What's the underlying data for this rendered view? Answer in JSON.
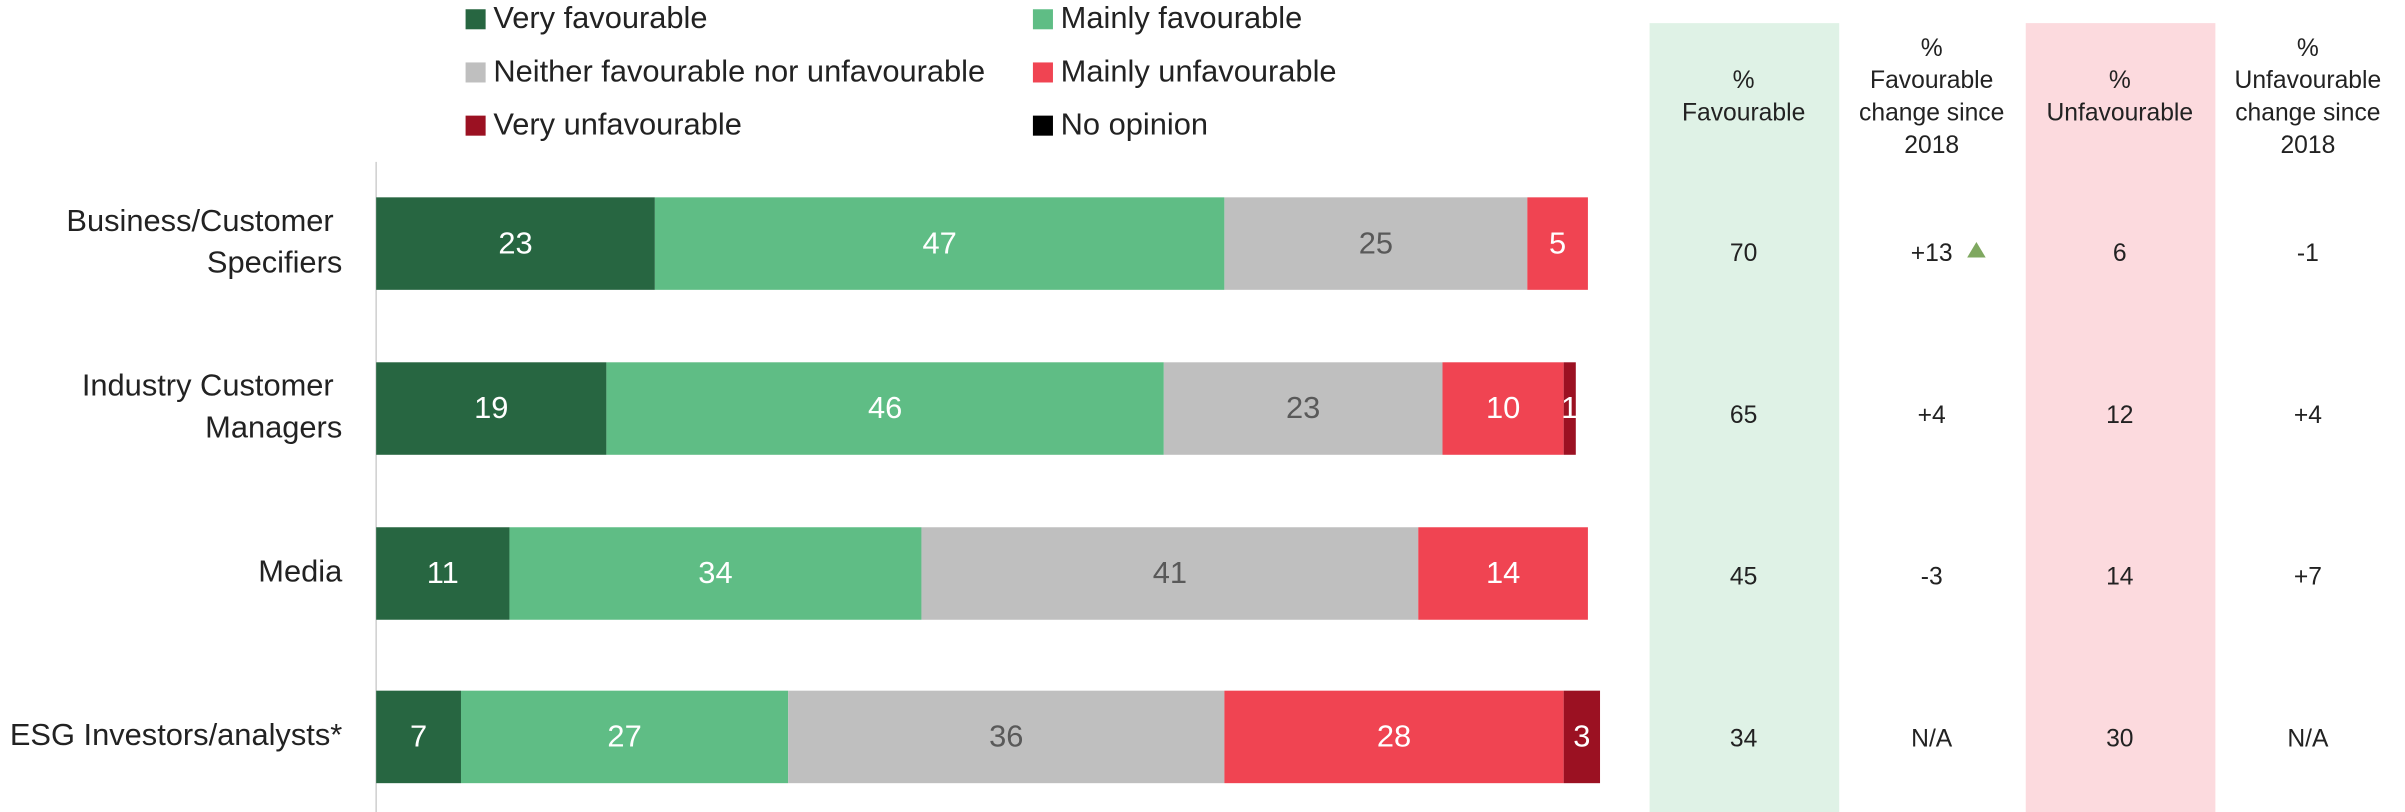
{
  "chart_data": {
    "type": "stacked-bar-horizontal",
    "categories": [
      "Business/Customer Specifiers",
      "Industry Customer Managers",
      "Media",
      "ESG Investors/analysts*"
    ],
    "series": [
      {
        "name": "Very favourable",
        "color": "#276641",
        "label_color": "#ffffff",
        "values": [
          23,
          19,
          11,
          7
        ]
      },
      {
        "name": "Mainly favourable",
        "color": "#5fbd85",
        "label_color": "#ffffff",
        "values": [
          47,
          46,
          34,
          27
        ]
      },
      {
        "name": "Neither favourable nor unfavourable",
        "color": "#bfbfbf",
        "label_color": "#595959",
        "values": [
          25,
          23,
          41,
          36
        ]
      },
      {
        "name": "Mainly unfavourable",
        "color": "#f04452",
        "label_color": "#ffffff",
        "values": [
          5,
          10,
          14,
          28
        ]
      },
      {
        "name": "Very unfavourable",
        "color": "#9b1122",
        "label_color": "#ffffff",
        "values": [
          null,
          1,
          null,
          3
        ]
      },
      {
        "name": "No opinion",
        "color": "#000000",
        "label_color": "#ffffff",
        "values": [
          null,
          null,
          null,
          null
        ]
      }
    ],
    "xlim": [
      0,
      100
    ]
  },
  "table": {
    "columns": [
      [
        "%",
        "Favourable"
      ],
      [
        "%",
        "Favourable",
        "change since",
        "2018"
      ],
      [
        "%",
        "Unfavourable"
      ],
      [
        "%",
        "Unfavourable",
        "change since",
        "2018"
      ]
    ],
    "rows": [
      [
        "70",
        "+13",
        "6",
        "-1"
      ],
      [
        "65",
        "+4",
        "12",
        "+4"
      ],
      [
        "45",
        "-3",
        "14",
        "+7"
      ],
      [
        "34",
        "N/A",
        "30",
        "N/A"
      ]
    ]
  }
}
